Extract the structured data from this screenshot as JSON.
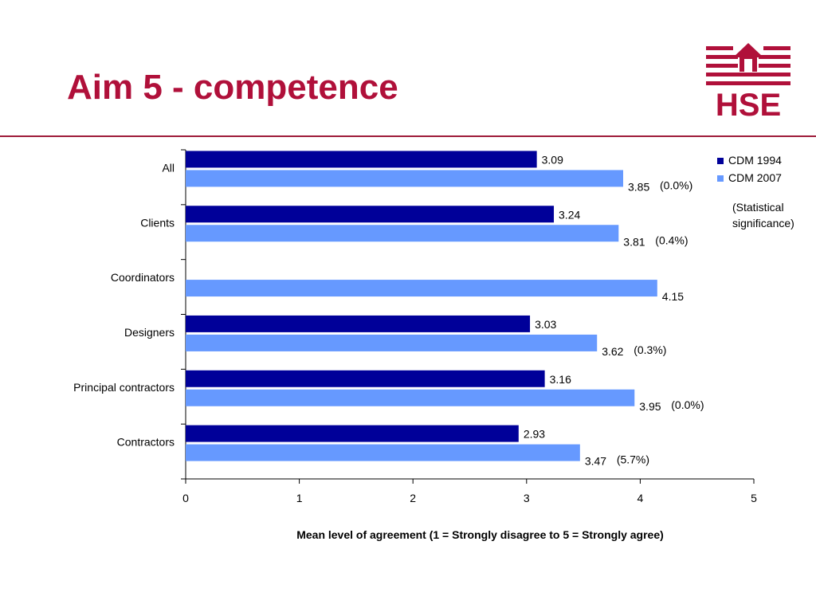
{
  "slide": {
    "title": "Aim 5 - competence",
    "logo_text": "HSE",
    "colors": {
      "title": "#b0103a",
      "rule": "#9e1b3a"
    }
  },
  "chart_data": {
    "type": "bar",
    "orientation": "horizontal",
    "categories": [
      "All",
      "Clients",
      "Coordinators",
      "Designers",
      "Principal contractors",
      "Contractors"
    ],
    "series": [
      {
        "name": "CDM 1994",
        "color": "#000099",
        "values": [
          3.09,
          3.24,
          null,
          3.03,
          3.16,
          2.93
        ]
      },
      {
        "name": "CDM 2007",
        "color": "#6699ff",
        "values": [
          3.85,
          3.81,
          4.15,
          3.62,
          3.95,
          3.47
        ]
      }
    ],
    "significance": [
      "(0.0%)",
      "(0.4%)",
      "",
      "(0.3%)",
      "(0.0%)",
      "(5.7%)"
    ],
    "legend_note": [
      "(Statistical",
      "significance)"
    ],
    "xlabel": "Mean level of agreement (1 = Strongly disagree to 5 = Strongly agree)",
    "ylabel": "",
    "xlim": [
      0,
      5
    ],
    "xticks": [
      0,
      1,
      2,
      3,
      4,
      5
    ],
    "grid": false,
    "legend_position": "top-right"
  }
}
